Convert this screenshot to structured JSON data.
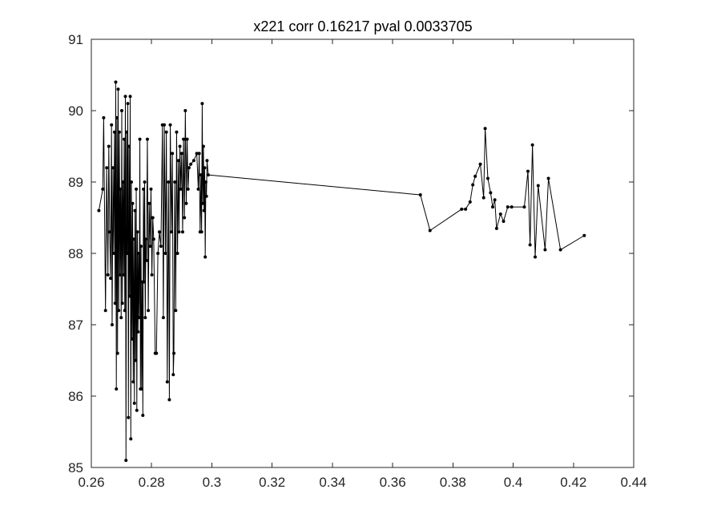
{
  "chart_data": {
    "type": "line",
    "title": "x221 corr 0.16217 pval 0.0033705",
    "xlabel": "",
    "ylabel": "",
    "xlim": [
      0.26,
      0.44
    ],
    "ylim": [
      85,
      91
    ],
    "x_ticks": [
      "0.26",
      "0.28",
      "0.3",
      "0.32",
      "0.34",
      "0.36",
      "0.38",
      "0.4",
      "0.42",
      "0.44"
    ],
    "y_ticks": [
      "85",
      "86",
      "87",
      "88",
      "89",
      "90",
      "91"
    ],
    "grid": false,
    "legend": "none",
    "line_color": "#000000",
    "marker": "dot",
    "series": [
      {
        "points": [
          [
            0.2625,
            88.6
          ],
          [
            0.2638,
            88.9
          ],
          [
            0.2641,
            89.9
          ],
          [
            0.2647,
            87.2
          ],
          [
            0.2651,
            89.2
          ],
          [
            0.2655,
            87.7
          ],
          [
            0.2658,
            89.5
          ],
          [
            0.2661,
            88.3
          ],
          [
            0.2664,
            87.65
          ],
          [
            0.2667,
            89.8
          ],
          [
            0.2669,
            87.0
          ],
          [
            0.2672,
            89.2
          ],
          [
            0.2674,
            88.0
          ],
          [
            0.2677,
            89.7
          ],
          [
            0.2679,
            87.3
          ],
          [
            0.2681,
            90.4
          ],
          [
            0.2683,
            86.1
          ],
          [
            0.2685,
            89.9
          ],
          [
            0.2687,
            86.6
          ],
          [
            0.2689,
            90.3
          ],
          [
            0.2691,
            87.2
          ],
          [
            0.2693,
            89.7
          ],
          [
            0.2695,
            87.7
          ],
          [
            0.2697,
            88.9
          ],
          [
            0.2699,
            87.1
          ],
          [
            0.2701,
            90.0
          ],
          [
            0.2703,
            87.3
          ],
          [
            0.2705,
            89.0
          ],
          [
            0.2707,
            87.7
          ],
          [
            0.2709,
            89.6
          ],
          [
            0.2711,
            87.2
          ],
          [
            0.2713,
            90.2
          ],
          [
            0.2715,
            85.1
          ],
          [
            0.2717,
            89.7
          ],
          [
            0.2719,
            88.0
          ],
          [
            0.2721,
            90.1
          ],
          [
            0.2723,
            85.7
          ],
          [
            0.2725,
            89.5
          ],
          [
            0.2727,
            87.4
          ],
          [
            0.2729,
            90.2
          ],
          [
            0.2731,
            85.4
          ],
          [
            0.2733,
            89.0
          ],
          [
            0.2735,
            86.8
          ],
          [
            0.2737,
            88.7
          ],
          [
            0.2739,
            86.2
          ],
          [
            0.2741,
            88.2
          ],
          [
            0.2743,
            85.9
          ],
          [
            0.2745,
            88.6
          ],
          [
            0.2747,
            86.5
          ],
          [
            0.2749,
            88.9
          ],
          [
            0.2751,
            85.8
          ],
          [
            0.2753,
            88.3
          ],
          [
            0.2755,
            86.9
          ],
          [
            0.2757,
            88.0
          ],
          [
            0.2759,
            87.1
          ],
          [
            0.2761,
            89.6
          ],
          [
            0.2763,
            86.1
          ],
          [
            0.2765,
            88.1
          ],
          [
            0.2767,
            86.1
          ],
          [
            0.2769,
            87.6
          ],
          [
            0.2771,
            85.73
          ],
          [
            0.2773,
            88.9
          ],
          [
            0.2775,
            87.6
          ],
          [
            0.2777,
            89.0
          ],
          [
            0.2779,
            87.1
          ],
          [
            0.2781,
            88.2
          ],
          [
            0.2783,
            87.9
          ],
          [
            0.2786,
            89.6
          ],
          [
            0.2789,
            87.2
          ],
          [
            0.2792,
            88.7
          ],
          [
            0.2795,
            88.1
          ],
          [
            0.2798,
            88.9
          ],
          [
            0.2801,
            87.7
          ],
          [
            0.2804,
            88.5
          ],
          [
            0.2807,
            88.2
          ],
          [
            0.2812,
            86.6
          ],
          [
            0.2816,
            86.6
          ],
          [
            0.2821,
            88.0
          ],
          [
            0.2826,
            88.3
          ],
          [
            0.2831,
            88.1
          ],
          [
            0.2836,
            89.8
          ],
          [
            0.2839,
            87.1
          ],
          [
            0.2842,
            89.8
          ],
          [
            0.2846,
            88.0
          ],
          [
            0.2849,
            89.7
          ],
          [
            0.2852,
            86.2
          ],
          [
            0.2856,
            89.0
          ],
          [
            0.2859,
            85.95
          ],
          [
            0.2862,
            89.8
          ],
          [
            0.2866,
            88.3
          ],
          [
            0.2869,
            89.4
          ],
          [
            0.2872,
            86.3
          ],
          [
            0.2874,
            86.6
          ],
          [
            0.2877,
            89.0
          ],
          [
            0.288,
            87.2
          ],
          [
            0.2883,
            89.7
          ],
          [
            0.2886,
            88.0
          ],
          [
            0.2889,
            89.3
          ],
          [
            0.2891,
            88.3
          ],
          [
            0.2894,
            89.5
          ],
          [
            0.2897,
            88.9
          ],
          [
            0.29,
            89.4
          ],
          [
            0.2903,
            88.3
          ],
          [
            0.2906,
            89.6
          ],
          [
            0.2909,
            88.5
          ],
          [
            0.2912,
            90.0
          ],
          [
            0.2915,
            88.7
          ],
          [
            0.2918,
            89.6
          ],
          [
            0.2921,
            88.9
          ],
          [
            0.2924,
            89.2
          ],
          [
            0.293,
            89.25
          ],
          [
            0.294,
            89.3
          ],
          [
            0.295,
            89.4
          ],
          [
            0.2955,
            88.9
          ],
          [
            0.2958,
            89.4
          ],
          [
            0.2961,
            88.3
          ],
          [
            0.2964,
            89.1
          ],
          [
            0.2966,
            88.3
          ],
          [
            0.2968,
            90.1
          ],
          [
            0.297,
            88.7
          ],
          [
            0.2972,
            89.5
          ],
          [
            0.2974,
            88.6
          ],
          [
            0.2976,
            89.2
          ],
          [
            0.2978,
            87.95
          ],
          [
            0.298,
            89.0
          ],
          [
            0.2982,
            88.8
          ],
          [
            0.2984,
            89.3
          ],
          [
            0.2988,
            89.1
          ],
          [
            0.3692,
            88.82
          ],
          [
            0.3724,
            88.32
          ],
          [
            0.3829,
            88.62
          ],
          [
            0.3842,
            88.62
          ],
          [
            0.3857,
            88.72
          ],
          [
            0.3866,
            88.96
          ],
          [
            0.3874,
            89.08
          ],
          [
            0.3891,
            89.25
          ],
          [
            0.3902,
            88.78
          ],
          [
            0.3907,
            89.75
          ],
          [
            0.3916,
            89.05
          ],
          [
            0.3925,
            88.85
          ],
          [
            0.3932,
            88.65
          ],
          [
            0.3939,
            88.75
          ],
          [
            0.3945,
            88.35
          ],
          [
            0.3958,
            88.55
          ],
          [
            0.3968,
            88.45
          ],
          [
            0.3982,
            88.65
          ],
          [
            0.3995,
            88.65
          ],
          [
            0.4037,
            88.65
          ],
          [
            0.4049,
            89.15
          ],
          [
            0.4056,
            88.12
          ],
          [
            0.4064,
            89.52
          ],
          [
            0.4073,
            87.95
          ],
          [
            0.4083,
            88.95
          ],
          [
            0.4106,
            88.05
          ],
          [
            0.4117,
            89.05
          ],
          [
            0.4157,
            88.05
          ],
          [
            0.4236,
            88.25
          ]
        ]
      }
    ]
  }
}
